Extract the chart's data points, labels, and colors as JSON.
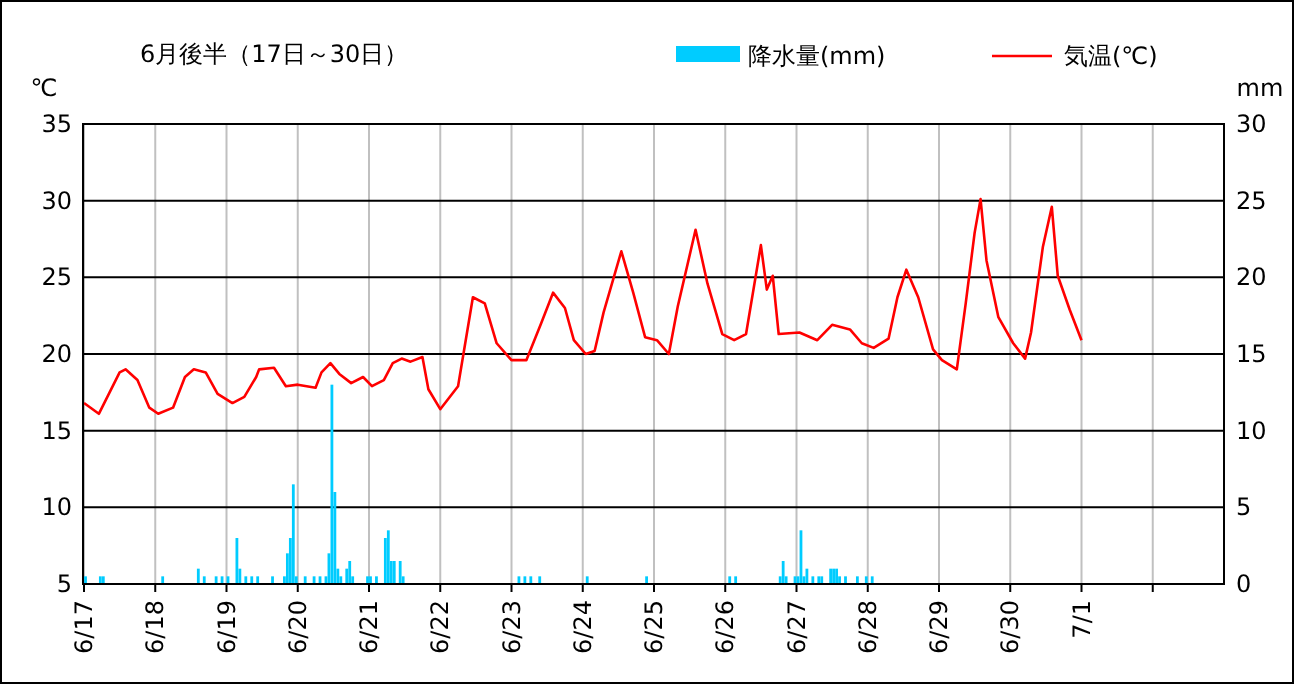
{
  "chart_data": {
    "type": "line",
    "title": "6月後半（17日～30日）",
    "ylabel": "℃",
    "y2label": "mm",
    "legend": "top",
    "grid": true,
    "xlim": [
      "--06-17",
      "--07-03"
    ],
    "xticks": [
      {
        "value": "--06-17",
        "label": "6/17"
      },
      {
        "value": "--06-18",
        "label": "6/18"
      },
      {
        "value": "--06-19",
        "label": "6/19"
      },
      {
        "value": "--06-20",
        "label": "6/20"
      },
      {
        "value": "--06-21",
        "label": "6/21"
      },
      {
        "value": "--06-22",
        "label": "6/22"
      },
      {
        "value": "--06-23",
        "label": "6/23"
      },
      {
        "value": "--06-24",
        "label": "6/24"
      },
      {
        "value": "--06-25",
        "label": "6/25"
      },
      {
        "value": "--06-26",
        "label": "6/26"
      },
      {
        "value": "--06-27",
        "label": "6/27"
      },
      {
        "value": "--06-28",
        "label": "6/28"
      },
      {
        "value": "--06-29",
        "label": "6/29"
      },
      {
        "value": "--06-30",
        "label": "6/30"
      },
      {
        "value": "--07-01",
        "label": "7/1"
      },
      {
        "value": "--07-02",
        "label": null
      }
    ],
    "ylim": [
      5,
      35
    ],
    "yticks": [
      5,
      10,
      15,
      20,
      25,
      30,
      35
    ],
    "y2lim": [
      0,
      30
    ],
    "y2ticks": [
      0,
      5,
      10,
      15,
      20,
      25,
      30
    ],
    "series": [
      {
        "name": "降水量(mm)",
        "type": "bar",
        "axis": "y2",
        "color": "#00ccff",
        "x": [
          "--06-17T00:00",
          "--06-17T05:00",
          "--06-17T06:00",
          "--06-18T02:00",
          "--06-18T14:00",
          "--06-18T16:00",
          "--06-18T20:00",
          "--06-18T22:00",
          "--06-19T00:00",
          "--06-19T03:00",
          "--06-19T04:00",
          "--06-19T06:00",
          "--06-19T08:00",
          "--06-19T10:00",
          "--06-19T15:00",
          "--06-19T19:00",
          "--06-19T20:00",
          "--06-19T21:00",
          "--06-19T22:00",
          "--06-19T23:00",
          "--06-20T02:00",
          "--06-20T05:00",
          "--06-20T07:00",
          "--06-20T09:00",
          "--06-20T10:00",
          "--06-20T11:00",
          "--06-20T12:00",
          "--06-20T13:00",
          "--06-20T14:00",
          "--06-20T16:00",
          "--06-20T17:00",
          "--06-20T18:00",
          "--06-20T23:00",
          "--06-21T00:00",
          "--06-21T02:00",
          "--06-21T05:00",
          "--06-21T06:00",
          "--06-21T07:00",
          "--06-21T08:00",
          "--06-21T10:00",
          "--06-21T11:00",
          "--06-23T02:00",
          "--06-23T04:00",
          "--06-23T06:00",
          "--06-23T09:00",
          "--06-24T01:00",
          "--06-24T21:00",
          "--06-26T01:00",
          "--06-26T03:00",
          "--06-26T18:00",
          "--06-26T19:00",
          "--06-26T20:00",
          "--06-26T23:00",
          "--06-27T00:00",
          "--06-27T01:00",
          "--06-27T02:00",
          "--06-27T03:00",
          "--06-27T05:00",
          "--06-27T07:00",
          "--06-27T08:00",
          "--06-27T11:00",
          "--06-27T12:00",
          "--06-27T13:00",
          "--06-27T14:00",
          "--06-27T16:00",
          "--06-27T20:00",
          "--06-27T23:00",
          "--06-28T01:00"
        ],
        "values": [
          0.5,
          0.5,
          0.5,
          0.5,
          1.0,
          0.5,
          0.5,
          0.5,
          0.5,
          3.0,
          1.0,
          0.5,
          0.5,
          0.5,
          0.5,
          0.5,
          2.0,
          3.0,
          6.5,
          0.5,
          0.5,
          0.5,
          0.5,
          0.5,
          2.0,
          13.0,
          6.0,
          1.0,
          0.5,
          1.0,
          1.5,
          0.5,
          0.5,
          0.5,
          0.5,
          3.0,
          3.5,
          1.5,
          1.5,
          1.5,
          0.5,
          0.5,
          0.5,
          0.5,
          0.5,
          0.5,
          0.5,
          0.5,
          0.5,
          0.5,
          1.5,
          0.5,
          0.5,
          0.5,
          3.5,
          0.5,
          1.0,
          0.5,
          0.5,
          0.5,
          1.0,
          1.0,
          1.0,
          0.5,
          0.5,
          0.5,
          0.5,
          0.5
        ]
      },
      {
        "name": "気温(℃)",
        "color": "#ff0000",
        "x": [
          "--06-17T00:00",
          "--06-17T05:00",
          "--06-17T12:00",
          "--06-17T14:00",
          "--06-17T18:00",
          "--06-17T22:00",
          "--06-18T01:00",
          "--06-18T06:00",
          "--06-18T10:00",
          "--06-18T13:00",
          "--06-18T17:00",
          "--06-18T21:00",
          "--06-19T02:00",
          "--06-19T06:00",
          "--06-19T10:00",
          "--06-19T11:00",
          "--06-19T16:00",
          "--06-19T20:00",
          "--06-20T00:00",
          "--06-20T06:00",
          "--06-20T08:00",
          "--06-20T11:00",
          "--06-20T14:00",
          "--06-20T18:00",
          "--06-20T22:00",
          "--06-21T01:00",
          "--06-21T05:00",
          "--06-21T08:00",
          "--06-21T11:00",
          "--06-21T14:00",
          "--06-21T18:00",
          "--06-21T20:00",
          "--06-22T00:00",
          "--06-22T06:00",
          "--06-22T11:00",
          "--06-22T15:00",
          "--06-22T19:00",
          "--06-23T00:00",
          "--06-23T05:00",
          "--06-23T10:00",
          "--06-23T14:00",
          "--06-23T18:00",
          "--06-23T21:00",
          "--06-24T01:00",
          "--06-24T04:00",
          "--06-24T07:00",
          "--06-24T13:00",
          "--06-24T17:00",
          "--06-24T21:00",
          "--06-25T01:00",
          "--06-25T05:00",
          "--06-25T08:00",
          "--06-25T14:00",
          "--06-25T18:00",
          "--06-25T23:00",
          "--06-26T03:00",
          "--06-26T07:00",
          "--06-26T12:00",
          "--06-26T14:00",
          "--06-26T16:00",
          "--06-26T18:00",
          "--06-27T01:00",
          "--06-27T07:00",
          "--06-27T12:00",
          "--06-27T18:00",
          "--06-27T22:00",
          "--06-28T02:00",
          "--06-28T07:00",
          "--06-28T10:00",
          "--06-28T13:00",
          "--06-28T17:00",
          "--06-28T22:00",
          "--06-29T01:00",
          "--06-29T06:00",
          "--06-29T09:00",
          "--06-29T12:00",
          "--06-29T14:00",
          "--06-29T16:00",
          "--06-29T20:00",
          "--06-30T01:00",
          "--06-30T05:00",
          "--06-30T07:00",
          "--06-30T11:00",
          "--06-30T14:00",
          "--06-30T16:00",
          "--06-30T20:00",
          "--07-01T00:00"
        ],
        "values": [
          16.8,
          16.1,
          18.8,
          19.0,
          18.3,
          16.5,
          16.1,
          16.5,
          18.5,
          19.0,
          18.8,
          17.4,
          16.8,
          17.2,
          18.5,
          19.0,
          19.1,
          17.9,
          18.0,
          17.8,
          18.8,
          19.4,
          18.7,
          18.1,
          18.5,
          17.9,
          18.3,
          19.4,
          19.7,
          19.5,
          19.8,
          17.7,
          16.4,
          17.9,
          23.7,
          23.3,
          20.7,
          19.6,
          19.6,
          22.0,
          24.0,
          23.0,
          20.9,
          20.0,
          20.2,
          22.7,
          26.7,
          24.0,
          21.1,
          20.9,
          20.0,
          23.1,
          28.1,
          24.6,
          21.3,
          20.9,
          21.3,
          27.1,
          24.2,
          25.1,
          21.3,
          21.4,
          20.9,
          21.9,
          21.6,
          20.7,
          20.4,
          21.0,
          23.7,
          25.5,
          23.7,
          20.3,
          19.6,
          19.0,
          23.3,
          27.9,
          30.1,
          26.1,
          22.4,
          20.7,
          19.7,
          21.4,
          27.0,
          29.6,
          25.1,
          22.9,
          20.9
        ]
      }
    ]
  }
}
